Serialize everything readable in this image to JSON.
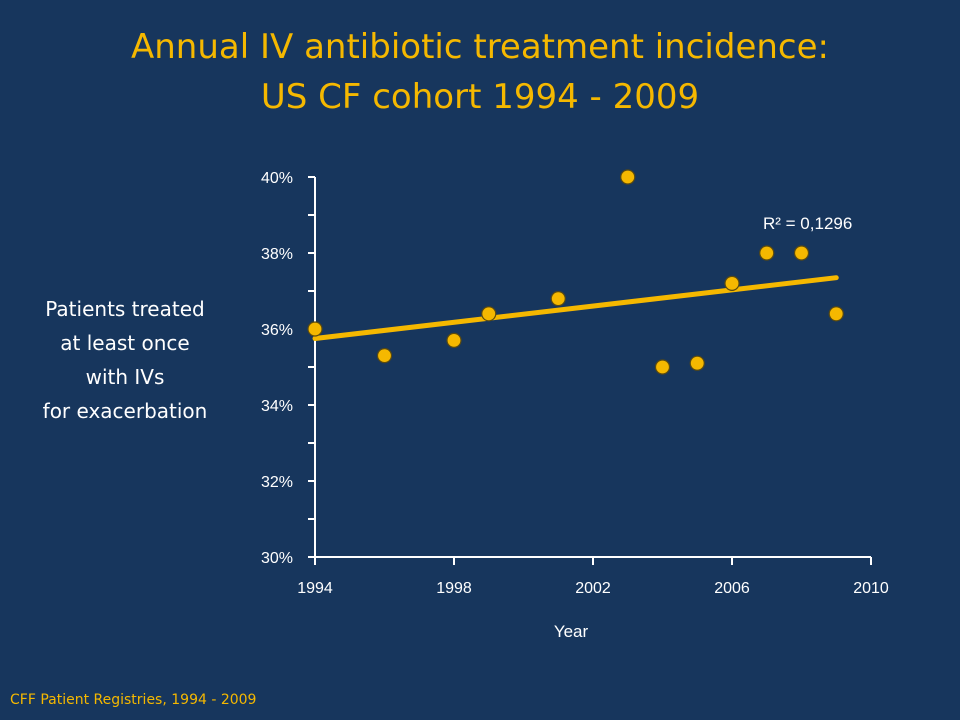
{
  "title_lines": [
    "Annual IV antibiotic treatment incidence:",
    "US CF cohort 1994 - 2009"
  ],
  "ylabel_lines": [
    "Patients treated",
    "at least once",
    "with IVs",
    "for exacerbation"
  ],
  "source": "CFF Patient Registries, 1994 - 2009",
  "colors": {
    "background": "#17365d",
    "accent": "#f5b800",
    "text": "#ffffff",
    "marker_stroke": "#5a4a10"
  },
  "chart_data": {
    "type": "scatter",
    "xlabel": "Year",
    "xlim": [
      1994,
      2010
    ],
    "ylim": [
      30,
      40
    ],
    "x_ticks": [
      1994,
      1998,
      2002,
      2006,
      2010
    ],
    "y_ticks": [
      30,
      32,
      34,
      36,
      38,
      40
    ],
    "y_tick_labels": [
      "30%",
      "32%",
      "34%",
      "36%",
      "38%",
      "40%"
    ],
    "points": [
      {
        "x": 1994,
        "y": 36.0
      },
      {
        "x": 1996,
        "y": 35.3
      },
      {
        "x": 1998,
        "y": 35.7
      },
      {
        "x": 1999,
        "y": 36.4
      },
      {
        "x": 2001,
        "y": 36.8
      },
      {
        "x": 2003,
        "y": 40.0
      },
      {
        "x": 2004,
        "y": 35.0
      },
      {
        "x": 2005,
        "y": 35.1
      },
      {
        "x": 2006,
        "y": 37.2
      },
      {
        "x": 2007,
        "y": 38.0
      },
      {
        "x": 2008,
        "y": 38.0
      },
      {
        "x": 2009,
        "y": 36.4
      }
    ],
    "trendline": {
      "start": {
        "x": 1994,
        "y": 35.75
      },
      "end": {
        "x": 2009,
        "y": 37.35
      }
    },
    "annotation": "R² = 0,1296",
    "grid": false,
    "legend": "none"
  }
}
